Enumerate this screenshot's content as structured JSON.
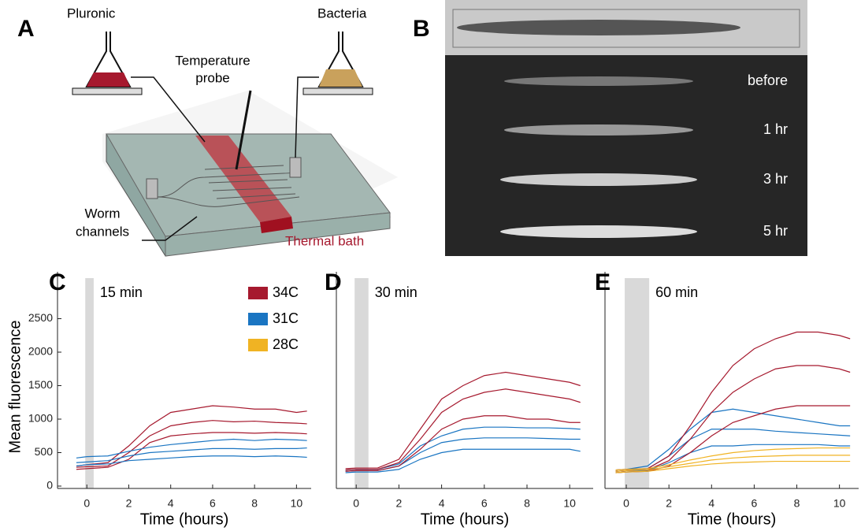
{
  "panel_a": {
    "label": "A",
    "left_flask": "Pluronic",
    "right_flask": "Bacteria",
    "probe": [
      "Temperature",
      "probe"
    ],
    "channels": [
      "Worm",
      "channels"
    ],
    "bath": "Thermal bath"
  },
  "panel_b": {
    "label": "B",
    "frames": [
      "before",
      "1 hr",
      "3 hr",
      "5 hr"
    ]
  },
  "chart_data": [
    {
      "type": "line",
      "label": "C",
      "annotation": "15 min",
      "shade": [
        0,
        0.25
      ],
      "x_label": "Time (hours)",
      "y_label": "Mean fluorescence",
      "x": [
        -0.5,
        0,
        1,
        2,
        3,
        4,
        5,
        6,
        7,
        8,
        9,
        10,
        10.5
      ],
      "xlim": [
        -1.4,
        10.7
      ],
      "ylim": [
        0,
        3200
      ],
      "xticks": [
        0,
        2,
        4,
        6,
        8,
        10
      ],
      "yticks": [
        0,
        500,
        1000,
        1500,
        2000,
        2500
      ],
      "series": [
        {
          "name": "34C",
          "color": "#a6192e",
          "traces": [
            [
              250,
              260,
              280,
              400,
              650,
              750,
              780,
              800,
              800,
              790,
              800,
              790,
              780
            ],
            [
              280,
              290,
              300,
              500,
              750,
              900,
              950,
              980,
              960,
              970,
              950,
              940,
              930
            ],
            [
              300,
              320,
              350,
              600,
              900,
              1100,
              1150,
              1200,
              1180,
              1150,
              1150,
              1100,
              1120
            ]
          ]
        },
        {
          "name": "31C",
          "color": "#1a75c2",
          "traces": [
            [
              300,
              320,
              330,
              380,
              400,
              420,
              440,
              450,
              450,
              440,
              450,
              440,
              430
            ],
            [
              350,
              360,
              380,
              450,
              500,
              520,
              540,
              560,
              560,
              550,
              560,
              560,
              570
            ],
            [
              420,
              440,
              450,
              520,
              580,
              620,
              650,
              680,
              700,
              680,
              700,
              690,
              680
            ]
          ]
        },
        {
          "name": "28C",
          "color": "#f0b323",
          "traces": []
        }
      ]
    },
    {
      "type": "line",
      "label": "D",
      "annotation": "30 min",
      "shade": [
        0,
        0.5
      ],
      "x_label": "Time (hours)",
      "x": [
        -0.5,
        0,
        1,
        2,
        3,
        4,
        5,
        6,
        7,
        8,
        9,
        10,
        10.5
      ],
      "xlim": [
        -0.93,
        11.1
      ],
      "ylim": [
        0,
        3200
      ],
      "xticks": [
        0,
        2,
        4,
        6,
        8,
        10
      ],
      "series": [
        {
          "color": "#1a75c2",
          "traces": [
            [
              200,
              210,
              210,
              250,
              400,
              500,
              550,
              550,
              550,
              550,
              550,
              550,
              520
            ],
            [
              220,
              230,
              230,
              300,
              500,
              650,
              700,
              720,
              720,
              720,
              710,
              700,
              700
            ],
            [
              240,
              250,
              250,
              330,
              600,
              750,
              850,
              880,
              880,
              870,
              870,
              860,
              850
            ]
          ]
        },
        {
          "color": "#a6192e",
          "traces": [
            [
              220,
              230,
              230,
              300,
              550,
              850,
              1000,
              1050,
              1050,
              1000,
              1000,
              950,
              950
            ],
            [
              240,
              250,
              250,
              350,
              700,
              1100,
              1300,
              1400,
              1450,
              1400,
              1350,
              1300,
              1250
            ],
            [
              260,
              270,
              270,
              400,
              850,
              1300,
              1500,
              1650,
              1700,
              1650,
              1600,
              1550,
              1500
            ]
          ]
        }
      ]
    },
    {
      "type": "line",
      "label": "E",
      "annotation": "60 min",
      "shade": [
        0,
        1
      ],
      "x_label": "Time (hours)",
      "x": [
        -0.5,
        0,
        1,
        2,
        3,
        4,
        5,
        6,
        7,
        8,
        9,
        10,
        10.5
      ],
      "xlim": [
        -1,
        10.9
      ],
      "ylim": [
        0,
        3200
      ],
      "xticks": [
        0,
        2,
        4,
        6,
        8,
        10
      ],
      "series": [
        {
          "color": "#1a75c2",
          "traces": [
            [
              200,
              210,
              230,
              350,
              500,
              600,
              600,
              620,
              620,
              620,
              620,
              600,
              600
            ],
            [
              220,
              230,
              260,
              450,
              700,
              850,
              850,
              850,
              820,
              800,
              780,
              760,
              750
            ],
            [
              240,
              250,
              300,
              550,
              850,
              1100,
              1150,
              1100,
              1050,
              1000,
              950,
              900,
              900
            ]
          ]
        },
        {
          "color": "#a6192e",
          "traces": [
            [
              200,
              210,
              220,
              300,
              500,
              750,
              950,
              1050,
              1150,
              1200,
              1200,
              1200,
              1200
            ],
            [
              220,
              230,
              240,
              380,
              700,
              1100,
              1400,
              1600,
              1750,
              1800,
              1800,
              1750,
              1700
            ],
            [
              240,
              250,
              260,
              450,
              900,
              1400,
              1800,
              2050,
              2200,
              2300,
              2300,
              2250,
              2200
            ]
          ]
        },
        {
          "color": "#f0b323",
          "traces": [
            [
              200,
              210,
              220,
              260,
              300,
              330,
              350,
              360,
              370,
              370,
              370,
              370,
              370
            ],
            [
              220,
              230,
              240,
              290,
              340,
              390,
              420,
              440,
              450,
              460,
              460,
              460,
              460
            ],
            [
              240,
              250,
              260,
              320,
              390,
              450,
              500,
              530,
              550,
              560,
              570,
              570,
              570
            ]
          ]
        }
      ]
    }
  ]
}
